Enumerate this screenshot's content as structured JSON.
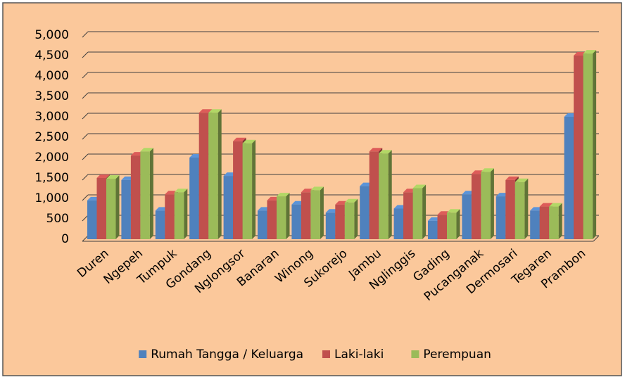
{
  "chart_data": {
    "type": "bar",
    "categories": [
      "Duren",
      "Ngepeh",
      "Tumpuk",
      "Gondang",
      "Nglongsor",
      "Banaran",
      "Winong",
      "Sukorejo",
      "Jambu",
      "Nglinggis",
      "Gading",
      "Pucanganak",
      "Dermosari",
      "Tegaren",
      "Prambon"
    ],
    "series": [
      {
        "name": "Rumah Tangga / Keluarga",
        "color": "#4f81bd",
        "values": [
          950,
          1450,
          700,
          2000,
          1550,
          700,
          850,
          650,
          1300,
          750,
          450,
          1100,
          1050,
          700,
          3000
        ]
      },
      {
        "name": "Laki-laki",
        "color": "#c0504d",
        "values": [
          1500,
          2050,
          1100,
          3100,
          2400,
          950,
          1150,
          850,
          2150,
          1150,
          600,
          1600,
          1450,
          800,
          4500
        ]
      },
      {
        "name": "Perempuan",
        "color": "#9bbb59",
        "values": [
          1480,
          2150,
          1150,
          3100,
          2350,
          1050,
          1200,
          900,
          2100,
          1250,
          650,
          1650,
          1400,
          800,
          4550
        ]
      }
    ],
    "ylim": [
      0,
      5000
    ],
    "yticks": [
      0,
      500,
      {
        "value": 1000,
        "label": "1,000"
      },
      {
        "value": 1500,
        "label": "1,500"
      },
      {
        "value": 2000,
        "label": "2,000"
      },
      {
        "value": 2500,
        "label": "2,500"
      },
      {
        "value": 3000,
        "label": "3,000"
      },
      {
        "value": 3500,
        "label": "3,500"
      },
      {
        "value": 4000,
        "label": "4,000"
      },
      {
        "value": 4500,
        "label": "4,500"
      },
      {
        "value": 5000,
        "label": "5,000"
      }
    ],
    "grid": true,
    "legend": "bottom"
  }
}
